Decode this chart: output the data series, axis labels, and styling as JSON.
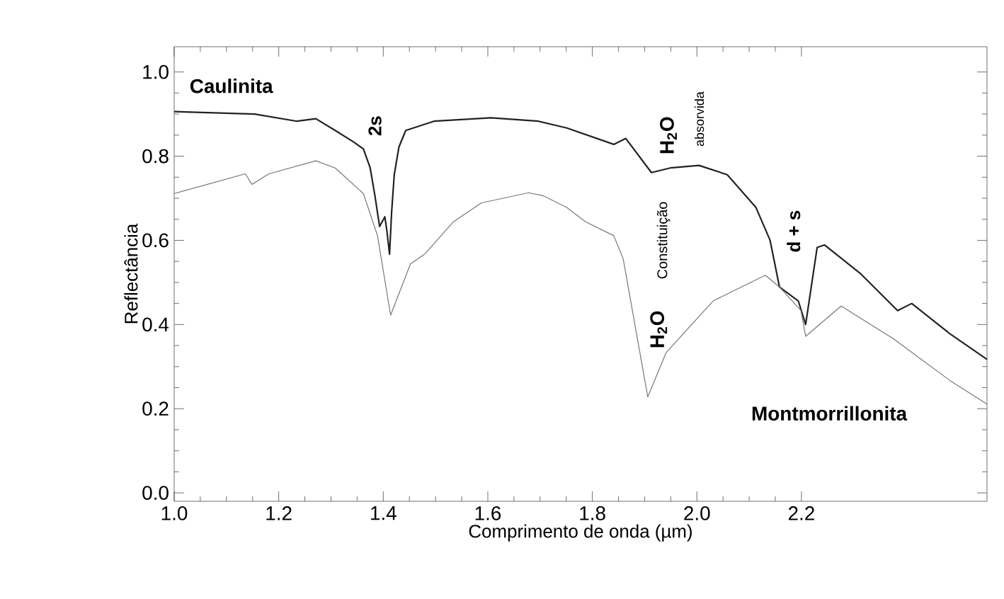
{
  "chart_data": {
    "type": "line",
    "xlabel": "Comprimento de onda (µm)",
    "ylabel": "Reflectância",
    "xlim": [
      1.0,
      2.555
    ],
    "ylim": [
      -0.02,
      1.06
    ],
    "xticks": [
      {
        "value": 1,
        "label": "1.0"
      },
      1.2,
      1.4,
      1.6,
      1.8,
      {
        "value": 2,
        "label": "2.0"
      },
      2.2
    ],
    "yticks": [
      {
        "value": 0,
        "label": "0.0"
      },
      0.2,
      0.4,
      0.6,
      0.8,
      {
        "value": 1,
        "label": "1.0"
      }
    ],
    "grid": false,
    "legend": false,
    "marker": "none",
    "line_style": "solid",
    "series": [
      {
        "name": "Caulinita",
        "color": "#222222",
        "x": [
          1.0,
          1.154,
          1.235,
          1.271,
          1.308,
          1.344,
          1.362,
          1.375,
          1.384,
          1.393,
          1.403,
          1.407,
          1.412,
          1.416,
          1.421,
          1.43,
          1.443,
          1.497,
          1.606,
          1.697,
          1.751,
          1.841,
          1.864,
          1.913,
          1.949,
          2.004,
          2.058,
          2.113,
          2.14,
          2.158,
          2.194,
          2.208,
          2.23,
          2.244,
          2.312,
          2.384,
          2.411,
          2.484,
          2.555
        ],
        "values": [
          0.906,
          0.9,
          0.883,
          0.889,
          0.861,
          0.833,
          0.817,
          0.772,
          0.706,
          0.633,
          0.656,
          0.622,
          0.567,
          0.667,
          0.756,
          0.822,
          0.861,
          0.883,
          0.891,
          0.883,
          0.867,
          0.828,
          0.842,
          0.761,
          0.772,
          0.778,
          0.756,
          0.678,
          0.6,
          0.489,
          0.456,
          0.4,
          0.583,
          0.589,
          0.522,
          0.433,
          0.45,
          0.378,
          0.317
        ]
      },
      {
        "name": "Montmorrillonita",
        "color": "#777777",
        "x": [
          1.0,
          1.136,
          1.149,
          1.181,
          1.271,
          1.308,
          1.362,
          1.389,
          1.414,
          1.452,
          1.479,
          1.534,
          1.588,
          1.678,
          1.706,
          1.751,
          1.787,
          1.841,
          1.859,
          1.906,
          1.941,
          2.031,
          2.131,
          2.158,
          2.199,
          2.208,
          2.276,
          2.375,
          2.484,
          2.555
        ],
        "values": [
          0.711,
          0.758,
          0.733,
          0.758,
          0.789,
          0.772,
          0.711,
          0.611,
          0.422,
          0.544,
          0.567,
          0.644,
          0.689,
          0.713,
          0.706,
          0.678,
          0.644,
          0.611,
          0.556,
          0.228,
          0.333,
          0.456,
          0.517,
          0.489,
          0.433,
          0.372,
          0.444,
          0.367,
          0.267,
          0.211
        ]
      }
    ],
    "annotations": [
      "2s",
      "H$_{2}$O",
      "absorvida",
      "H$_{2}$O",
      "Constituição",
      "d + s"
    ]
  }
}
